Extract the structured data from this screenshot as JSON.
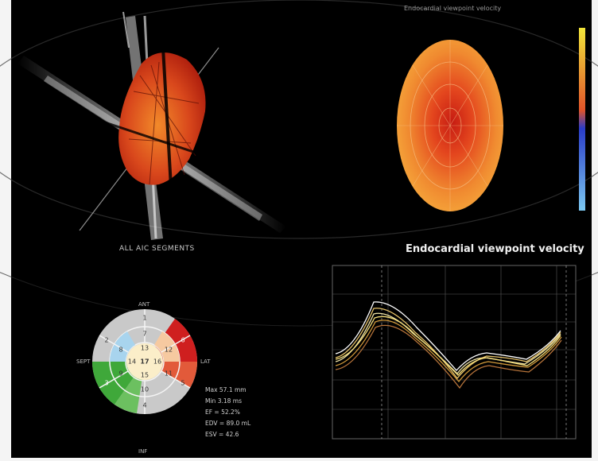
{
  "panels": {
    "model_label": "ALL AIC SEGMENTS",
    "bullseye_label": "Endocardial viewpoint velocity",
    "graph_title": "Endocardial viewpoint velocity"
  },
  "segment_map": {
    "orientation": {
      "top": "ANT",
      "bottom": "INF",
      "left": "SEPT",
      "right": "LAT"
    },
    "center_label": "17",
    "segments": [
      "1",
      "2",
      "3",
      "4",
      "5",
      "6",
      "7",
      "8",
      "9",
      "10",
      "11",
      "12",
      "13",
      "14",
      "15",
      "16"
    ]
  },
  "stats": [
    "Max 57.1 mm",
    "Min 3.18 ms",
    "EF = 52.2%",
    "EDV = 89.0 mL",
    "ESV = 42.6"
  ],
  "colors": {
    "background": "#000000",
    "frame": "#f4f4f4",
    "bullseye_high": "#d93a1a",
    "bullseye_low": "#f5a53a",
    "akinetic_red": "#cf1f1f",
    "hypokinetic_green": "#3fa83a",
    "normal_gray": "#c9c9c9",
    "light_blue": "#a8d4ee",
    "colorbar_top": "#f2e63a",
    "colorbar_bottom": "#7cc8f0"
  }
}
